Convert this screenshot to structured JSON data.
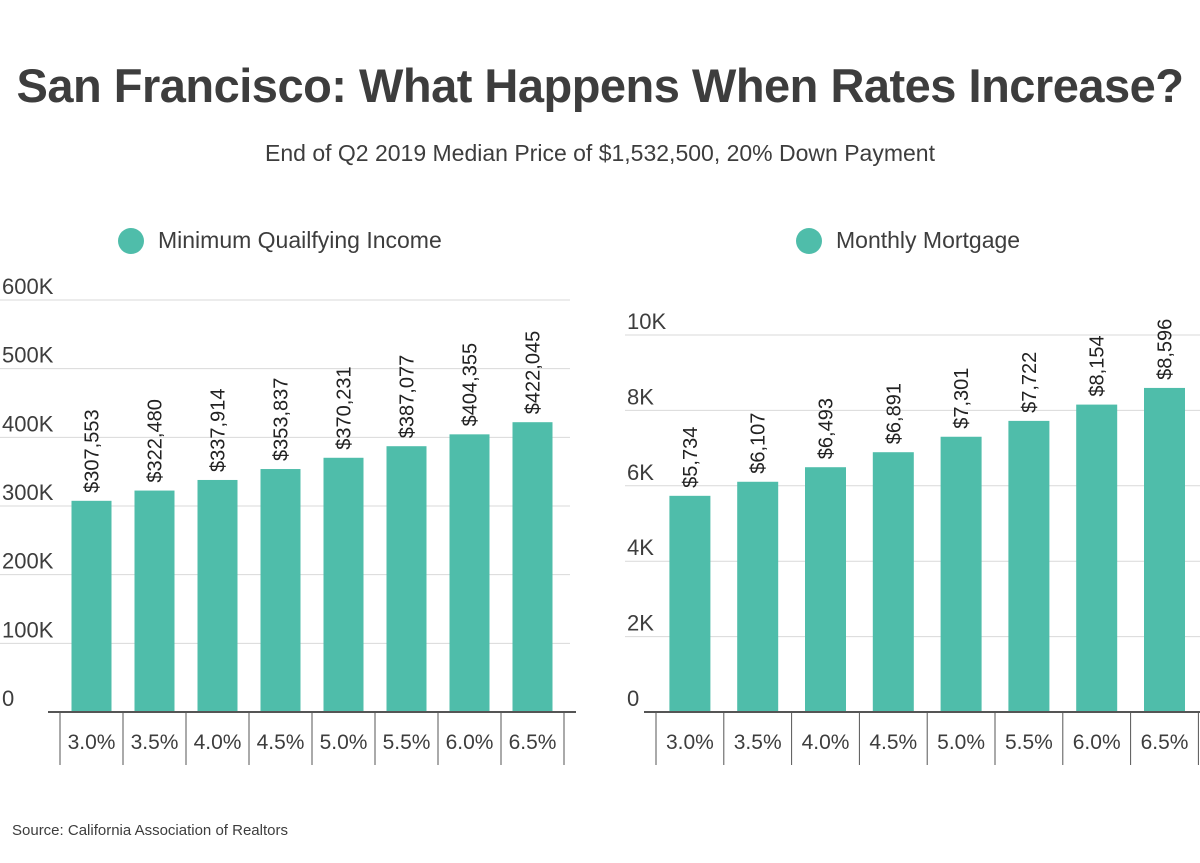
{
  "title": "San Francisco: What Happens When Rates Increase?",
  "subtitle": "End of Q2 2019 Median Price of $1,532,500, 20% Down Payment",
  "source": "Source:  California Association of Realtors",
  "colors": {
    "bar": "#4fbdaa",
    "grid": "#d9d9d9",
    "axis": "#555555"
  },
  "chart_data": [
    {
      "type": "bar",
      "legend": "Minimum Quailfying Income",
      "categories": [
        "3.0%",
        "3.5%",
        "4.0%",
        "4.5%",
        "5.0%",
        "5.5%",
        "6.0%",
        "6.5%"
      ],
      "values": [
        307553,
        322480,
        337914,
        353837,
        370231,
        387077,
        404355,
        422045
      ],
      "data_labels": [
        "$307,553",
        "$322,480",
        "$337,914",
        "$353,837",
        "$370,231",
        "$387,077",
        "$404,355",
        "$422,045"
      ],
      "yticks": [
        0,
        100000,
        200000,
        300000,
        400000,
        500000,
        600000
      ],
      "ytick_labels": [
        "0",
        "100K",
        "200K",
        "300K",
        "400K",
        "500K",
        "600K"
      ],
      "ylim": [
        0,
        600000
      ],
      "grid": true
    },
    {
      "type": "bar",
      "legend": "Monthly Mortgage",
      "categories": [
        "3.0%",
        "3.5%",
        "4.0%",
        "4.5%",
        "5.0%",
        "5.5%",
        "6.0%",
        "6.5%"
      ],
      "values": [
        5734,
        6107,
        6493,
        6891,
        7301,
        7722,
        8154,
        8596
      ],
      "data_labels": [
        "$5,734",
        "$6,107",
        "$6,493",
        "$6,891",
        "$7,301",
        "$7,722",
        "$8,154",
        "$8,596"
      ],
      "yticks": [
        0,
        2000,
        4000,
        6000,
        8000,
        10000
      ],
      "ytick_labels": [
        "0",
        "2K",
        "4K",
        "6K",
        "8K",
        "10K"
      ],
      "ylim": [
        0,
        10000
      ],
      "grid": true
    }
  ]
}
